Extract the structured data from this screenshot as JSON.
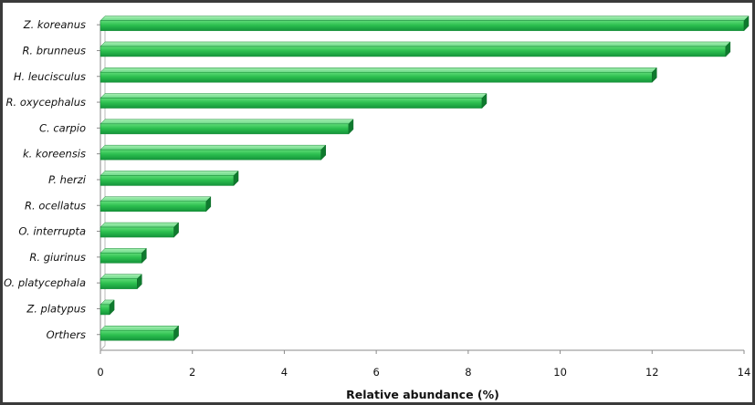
{
  "chart_data": {
    "type": "bar",
    "orientation": "horizontal",
    "categories": [
      "Z. koreanus",
      "R. brunneus",
      "H. leucisculus",
      "R. oxycephalus",
      "C. carpio",
      "k. koreensis",
      "P. herzi",
      "R. ocellatus",
      "O. interrupta",
      "R. giurinus",
      "O. platycephala",
      "Z. platypus",
      "Orthers"
    ],
    "values": [
      14.0,
      13.6,
      12.0,
      8.3,
      5.4,
      4.8,
      2.9,
      2.3,
      1.6,
      0.9,
      0.8,
      0.2,
      1.6
    ],
    "xlabel": "Relative abundance (%)",
    "ylabel": "",
    "xlim": [
      0,
      14
    ],
    "xticks": [
      "0",
      "2",
      "4",
      "6",
      "8",
      "10",
      "12",
      "14"
    ],
    "grid": false,
    "bar_color": "#22b14c"
  }
}
